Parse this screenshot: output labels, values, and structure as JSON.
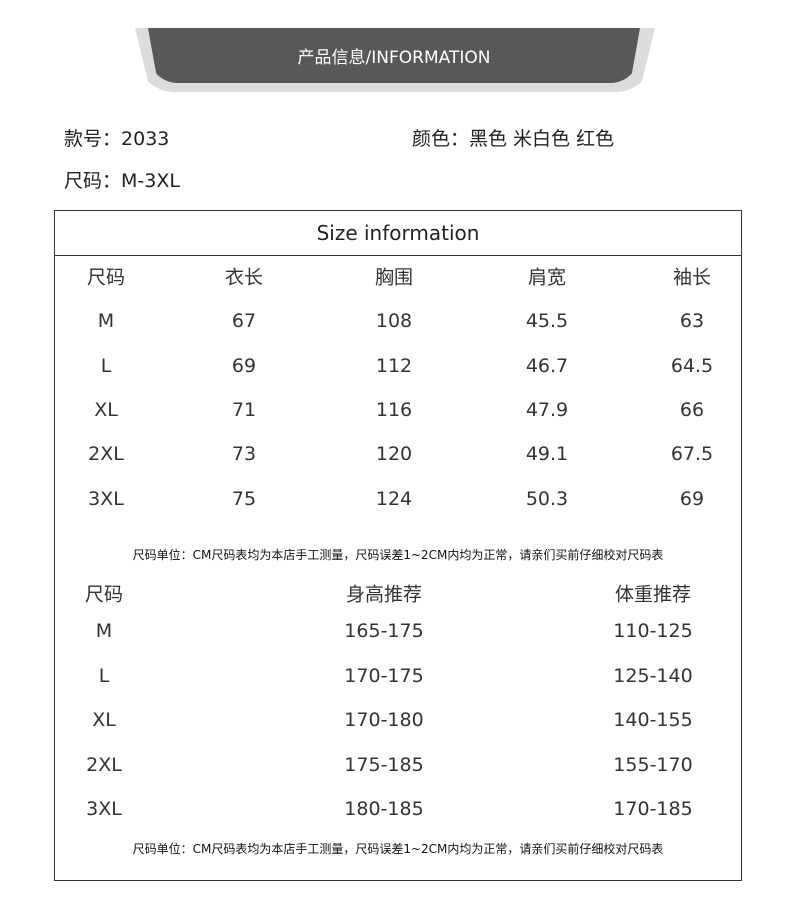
{
  "banner": {
    "title": "产品信息/INFORMATION"
  },
  "product": {
    "style_label": "款号：",
    "style_value": "2033",
    "color_label": "颜色：",
    "color_value": "黑色 米白色 红色",
    "size_label": "尺码：",
    "size_value": "M-3XL"
  },
  "size_table": {
    "title": "Size information",
    "headers": [
      "尺码",
      "衣长",
      "胸围",
      "肩宽",
      "袖长"
    ],
    "rows": [
      [
        "M",
        "67",
        "108",
        "45.5",
        "63"
      ],
      [
        "L",
        "69",
        "112",
        "46.7",
        "64.5"
      ],
      [
        "XL",
        "71",
        "116",
        "47.9",
        "66"
      ],
      [
        "2XL",
        "73",
        "120",
        "49.1",
        "67.5"
      ],
      [
        "3XL",
        "75",
        "124",
        "50.3",
        "69"
      ]
    ],
    "note": "尺码单位：CM尺码表均为本店手工测量，尺码误差1~2CM内均为正常，请亲们买前仔细校对尺码表"
  },
  "recommend_table": {
    "headers": [
      "尺码",
      "身高推荐",
      "体重推荐"
    ],
    "rows": [
      [
        "M",
        "165-175",
        "110-125"
      ],
      [
        "L",
        "170-175",
        "125-140"
      ],
      [
        "XL",
        "170-180",
        "140-155"
      ],
      [
        "2XL",
        "175-185",
        "155-170"
      ],
      [
        "3XL",
        "180-185",
        "170-185"
      ]
    ],
    "note": "尺码单位：CM尺码表均为本店手工测量，尺码误差1~2CM内均为正常，请亲们买前仔细校对尺码表"
  }
}
